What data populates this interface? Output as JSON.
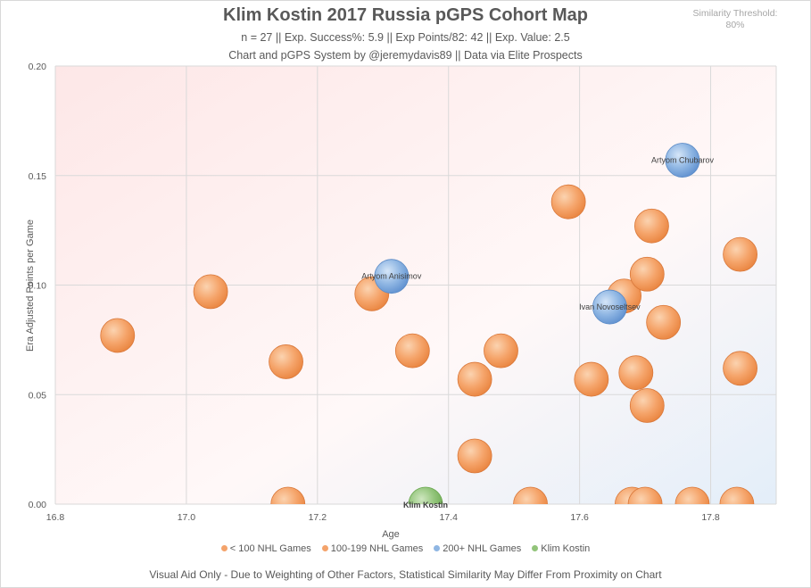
{
  "title": "Klim Kostin 2017 Russia pGPS Cohort Map",
  "subtitle1": "n = 27 || Exp. Success%: 5.9 || Exp Points/82: 42 || Exp. Value: 2.5",
  "subtitle2": "Chart and pGPS System by @jeremydavis89 || Data via Elite Prospects",
  "threshold_label": "Similarity Threshold:",
  "threshold_value": "80%",
  "footer": "Visual Aid Only - Due to Weighting of Other Factors, Statistical Similarity May Differ From Proximity on Chart",
  "colors": {
    "lt100": "#f4a36b",
    "g100_199": "#f4a36b",
    "g200": "#8fb6e3",
    "target": "#92c47a"
  },
  "chart_data": {
    "type": "scatter",
    "title": "Klim Kostin 2017 Russia pGPS Cohort Map",
    "xlabel": "Age",
    "ylabel": "Era Adjusted Points per Game",
    "xlim": [
      16.8,
      17.9
    ],
    "ylim": [
      0,
      0.2
    ],
    "xticks": [
      "16.8",
      "17.0",
      "17.2",
      "17.4",
      "17.6",
      "17.8"
    ],
    "yticks": [
      "0.00",
      "0.05",
      "0.10",
      "0.15",
      "0.20"
    ],
    "grid": true,
    "legend_position": "bottom",
    "series": [
      {
        "name": "< 100 NHL Games",
        "color_key": "lt100",
        "points": [
          {
            "x": 16.895,
            "y": 0.077,
            "label": ""
          },
          {
            "x": 17.037,
            "y": 0.097,
            "label": ""
          },
          {
            "x": 17.152,
            "y": 0.065,
            "label": ""
          },
          {
            "x": 17.155,
            "y": 0.0,
            "label": ""
          },
          {
            "x": 17.283,
            "y": 0.096,
            "label": ""
          },
          {
            "x": 17.345,
            "y": 0.07,
            "label": ""
          },
          {
            "x": 17.44,
            "y": 0.057,
            "label": ""
          },
          {
            "x": 17.44,
            "y": 0.022,
            "label": ""
          },
          {
            "x": 17.48,
            "y": 0.07,
            "label": ""
          },
          {
            "x": 17.525,
            "y": 0.0,
            "label": ""
          },
          {
            "x": 17.583,
            "y": 0.138,
            "label": ""
          },
          {
            "x": 17.618,
            "y": 0.057,
            "label": ""
          },
          {
            "x": 17.668,
            "y": 0.095,
            "label": ""
          },
          {
            "x": 17.686,
            "y": 0.06,
            "label": ""
          },
          {
            "x": 17.68,
            "y": 0.0,
            "label": ""
          },
          {
            "x": 17.7,
            "y": 0.0,
            "label": ""
          },
          {
            "x": 17.703,
            "y": 0.105,
            "label": ""
          },
          {
            "x": 17.703,
            "y": 0.045,
            "label": ""
          },
          {
            "x": 17.71,
            "y": 0.127,
            "label": ""
          },
          {
            "x": 17.728,
            "y": 0.083,
            "label": ""
          },
          {
            "x": 17.772,
            "y": 0.0,
            "label": ""
          },
          {
            "x": 17.84,
            "y": 0.0,
            "label": ""
          },
          {
            "x": 17.845,
            "y": 0.114,
            "label": ""
          },
          {
            "x": 17.845,
            "y": 0.062,
            "label": ""
          }
        ]
      },
      {
        "name": "100-199 NHL Games",
        "color_key": "g100_199",
        "points": []
      },
      {
        "name": "200+ NHL Games",
        "color_key": "g200",
        "points": [
          {
            "x": 17.313,
            "y": 0.104,
            "label": "Artyom Anisimov"
          },
          {
            "x": 17.646,
            "y": 0.09,
            "label": "Ivan Novoseltsev"
          },
          {
            "x": 17.757,
            "y": 0.157,
            "label": "Artyom Chubarov"
          }
        ]
      },
      {
        "name": "Klim Kostin",
        "color_key": "target",
        "points": [
          {
            "x": 17.365,
            "y": 0.0,
            "label": "Klim Kostin"
          }
        ]
      }
    ]
  }
}
